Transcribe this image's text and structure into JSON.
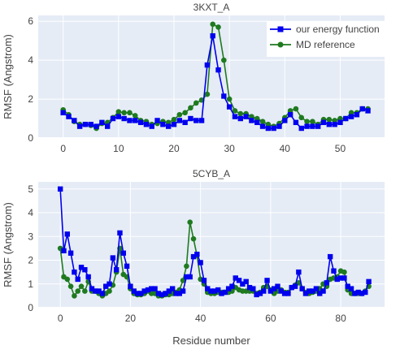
{
  "chart_data": [
    {
      "type": "line",
      "title": "3KXT_A",
      "xlabel": "",
      "ylabel": "RMSF (Angstrom)",
      "xlim": [
        -4.5,
        58
      ],
      "ylim": [
        0,
        6.3
      ],
      "x_ticks": [
        0,
        10,
        20,
        30,
        40,
        50
      ],
      "y_ticks": [
        0,
        2,
        4,
        6
      ],
      "grid": true,
      "legend": "top-right",
      "x": [
        0,
        1,
        2,
        3,
        4,
        5,
        6,
        7,
        8,
        9,
        10,
        11,
        12,
        13,
        14,
        15,
        16,
        17,
        18,
        19,
        20,
        21,
        22,
        23,
        24,
        25,
        26,
        27,
        28,
        29,
        30,
        31,
        32,
        33,
        34,
        35,
        36,
        37,
        38,
        39,
        40,
        41,
        42,
        43,
        44,
        45,
        46,
        47,
        48,
        49,
        50,
        51,
        52,
        53,
        54,
        55
      ],
      "series": [
        {
          "name": "our energy function",
          "color": "#0000ee",
          "marker": "square",
          "values": [
            1.3,
            1.1,
            0.9,
            0.6,
            0.7,
            0.7,
            0.6,
            0.8,
            0.6,
            1.0,
            1.1,
            1.0,
            0.9,
            0.9,
            0.8,
            0.7,
            0.6,
            0.9,
            0.7,
            0.6,
            0.7,
            0.9,
            0.8,
            1.0,
            0.9,
            0.9,
            3.75,
            5.25,
            3.5,
            2.15,
            1.6,
            1.1,
            1.0,
            1.1,
            0.9,
            0.8,
            0.6,
            0.5,
            0.5,
            0.6,
            0.9,
            1.2,
            0.8,
            0.5,
            0.6,
            0.6,
            0.6,
            0.8,
            0.7,
            0.7,
            0.8,
            1.0,
            1.1,
            1.2,
            1.5,
            1.4
          ]
        },
        {
          "name": "MD reference",
          "color": "#1f7a1f",
          "marker": "circle",
          "values": [
            1.45,
            1.2,
            0.85,
            0.7,
            0.7,
            0.65,
            0.5,
            0.75,
            0.8,
            1.05,
            1.35,
            1.3,
            1.3,
            1.15,
            0.9,
            0.85,
            0.7,
            0.75,
            0.85,
            0.8,
            0.95,
            1.2,
            1.3,
            1.55,
            1.8,
            1.95,
            2.25,
            5.85,
            5.7,
            4.0,
            2.0,
            1.4,
            1.25,
            1.25,
            1.1,
            1.0,
            0.85,
            0.7,
            0.6,
            0.75,
            1.05,
            1.4,
            1.5,
            1.05,
            0.85,
            0.85,
            0.7,
            0.95,
            0.95,
            0.9,
            1.0,
            1.0,
            1.3,
            1.3,
            1.5,
            1.5
          ]
        }
      ]
    },
    {
      "type": "line",
      "title": "5CYB_A",
      "xlabel": "Residue number",
      "ylabel": "RMSF (Angstrom)",
      "xlim": [
        -6.3,
        92.5
      ],
      "ylim": [
        0,
        5.3
      ],
      "x_ticks": [
        0,
        20,
        40,
        60,
        80
      ],
      "y_ticks": [
        0,
        1,
        2,
        3,
        4,
        5
      ],
      "grid": true,
      "x": [
        0,
        1,
        2,
        3,
        4,
        5,
        6,
        7,
        8,
        9,
        10,
        11,
        12,
        13,
        14,
        15,
        16,
        17,
        18,
        19,
        20,
        21,
        22,
        23,
        24,
        25,
        26,
        27,
        28,
        29,
        30,
        31,
        32,
        33,
        34,
        35,
        36,
        37,
        38,
        39,
        40,
        41,
        42,
        43,
        44,
        45,
        46,
        47,
        48,
        49,
        50,
        51,
        52,
        53,
        54,
        55,
        56,
        57,
        58,
        59,
        60,
        61,
        62,
        63,
        64,
        65,
        66,
        67,
        68,
        69,
        70,
        71,
        72,
        73,
        74,
        75,
        76,
        77,
        78,
        79,
        80,
        81,
        82,
        83,
        84,
        85,
        86,
        87,
        88
      ],
      "series": [
        {
          "name": "our energy function",
          "color": "#0000ee",
          "marker": "square",
          "values": [
            5.0,
            2.4,
            3.1,
            2.3,
            1.5,
            1.2,
            1.7,
            1.6,
            1.3,
            0.8,
            0.7,
            0.7,
            0.6,
            0.9,
            1.0,
            2.1,
            1.6,
            3.15,
            2.3,
            1.75,
            0.9,
            0.7,
            0.6,
            0.6,
            0.7,
            0.75,
            0.8,
            0.8,
            0.6,
            0.55,
            0.6,
            0.7,
            0.8,
            0.6,
            0.6,
            0.7,
            1.3,
            1.3,
            2.15,
            2.25,
            1.9,
            1.15,
            0.8,
            0.7,
            0.7,
            0.75,
            0.6,
            0.65,
            0.8,
            0.9,
            1.25,
            1.15,
            1.0,
            1.1,
            0.85,
            0.8,
            0.55,
            0.6,
            0.7,
            1.15,
            0.7,
            0.8,
            0.9,
            0.7,
            0.6,
            0.6,
            0.85,
            0.9,
            1.5,
            0.8,
            0.6,
            0.7,
            0.7,
            0.8,
            0.6,
            0.7,
            1.05,
            2.15,
            1.55,
            1.2,
            1.25,
            1.25,
            0.9,
            0.8,
            0.6,
            0.65,
            0.6,
            0.65,
            1.1
          ]
        },
        {
          "name": "MD reference",
          "color": "#1f7a1f",
          "marker": "circle",
          "values": [
            2.5,
            1.3,
            1.2,
            0.9,
            0.5,
            0.7,
            0.9,
            0.7,
            1.1,
            0.7,
            0.7,
            0.6,
            0.5,
            0.6,
            0.7,
            0.95,
            1.5,
            2.5,
            1.4,
            1.3,
            0.8,
            0.6,
            0.55,
            0.55,
            0.6,
            0.7,
            0.6,
            0.6,
            0.5,
            0.5,
            0.55,
            0.55,
            0.6,
            0.65,
            0.75,
            1.15,
            1.75,
            3.6,
            2.9,
            2.2,
            1.2,
            1.0,
            0.65,
            0.6,
            0.6,
            0.65,
            0.65,
            0.65,
            0.65,
            0.7,
            0.85,
            0.75,
            0.7,
            0.7,
            0.7,
            0.7,
            0.6,
            0.65,
            0.85,
            0.9,
            0.75,
            0.6,
            0.7,
            0.75,
            0.65,
            0.65,
            0.85,
            0.95,
            1.05,
            0.8,
            0.65,
            0.6,
            0.65,
            0.7,
            0.8,
            1.0,
            0.9,
            1.2,
            1.25,
            1.3,
            1.55,
            1.5,
            0.75,
            0.6,
            0.6,
            0.6,
            0.6,
            0.7,
            0.9
          ]
        }
      ]
    }
  ]
}
